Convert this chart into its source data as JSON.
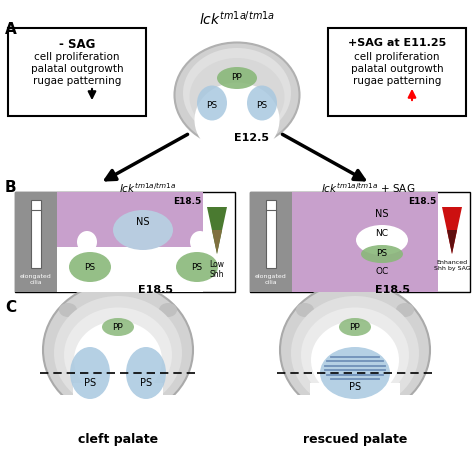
{
  "bg_color": "#ffffff",
  "purple_color": "#c8a0cc",
  "green_color": "#8ab87a",
  "blue_color": "#a8c8e0",
  "light_blue_ns": "#b8cce0",
  "dark_green_tri": "#4a7a30",
  "olive_tri": "#807040",
  "gray_palate": "#d8d8d8",
  "gray_dark": "#b0b0b0",
  "syringe_gray": "#a8a8a8",
  "title": "$\\mathit{lck}^{\\mathit{tm1a/tm1a}}$",
  "panel_A": "A",
  "panel_B": "B",
  "panel_C": "C",
  "left_box_line1": "- SAG",
  "left_box_line2": "cell proliferation",
  "left_box_line3": "palatal outgrowth",
  "left_box_line4": "rugae patterning",
  "right_box_line1": "+SAG at E11.25",
  "right_box_line2": "cell proliferation",
  "right_box_line3": "palatal outgrowth",
  "right_box_line4": "rugae patterning",
  "e12": "E12.5",
  "e18": "E18.5",
  "lck_left": "$\\mathit{lck}^{\\mathit{tm1a/tm1a}}$",
  "lck_right": "$\\mathit{lck}^{\\mathit{tm1a/tm1a}}$ + SAG",
  "low_shh": "Low\nShh",
  "enhanced_shh": "Enhanced\nShh by SAG",
  "cleft": "cleft palate",
  "rescued": "rescued palate",
  "elongated": "elongated\ncilia",
  "ns": "NS",
  "nc": "NC",
  "ps": "PS",
  "oc": "OC",
  "pp": "PP"
}
